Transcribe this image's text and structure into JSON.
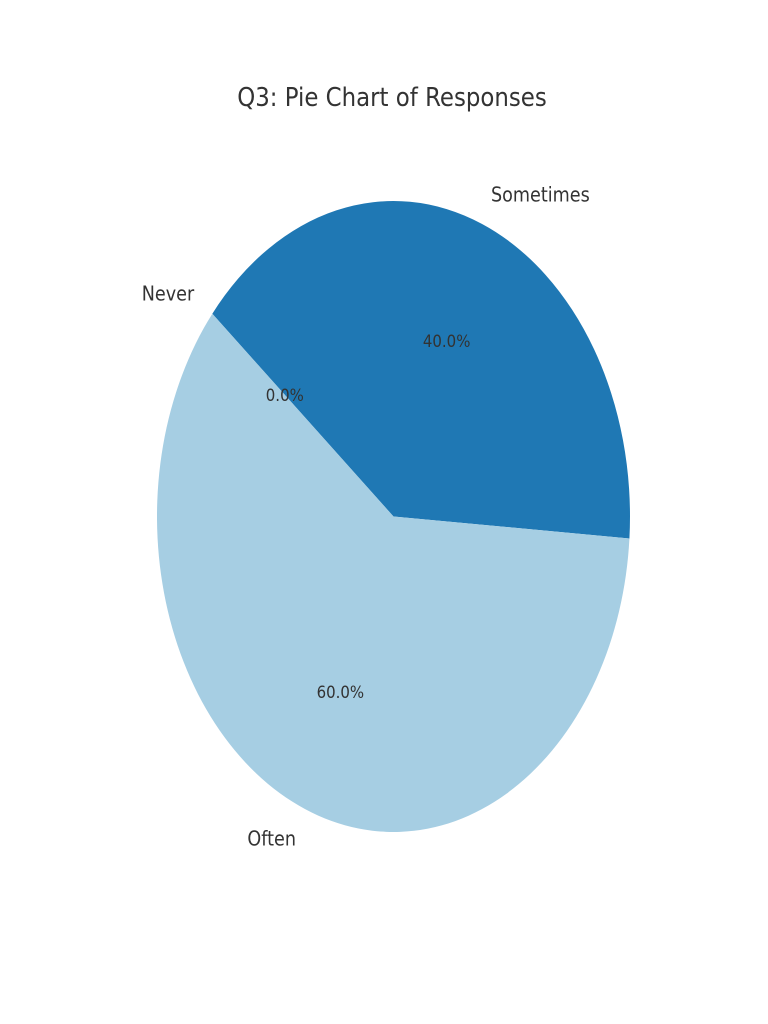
{
  "chart_data": {
    "type": "pie",
    "title": "Q3: Pie Chart of Responses",
    "categories": [
      "Never",
      "Sometimes",
      "Often"
    ],
    "values": [
      0,
      40,
      60
    ],
    "percent_labels": [
      "0.0%",
      "40.0%",
      "60.0%"
    ],
    "colors": [
      "#a6cee3",
      "#1f78b4",
      "#a6cee3"
    ],
    "start_angle": 140,
    "direction": "clockwise"
  }
}
